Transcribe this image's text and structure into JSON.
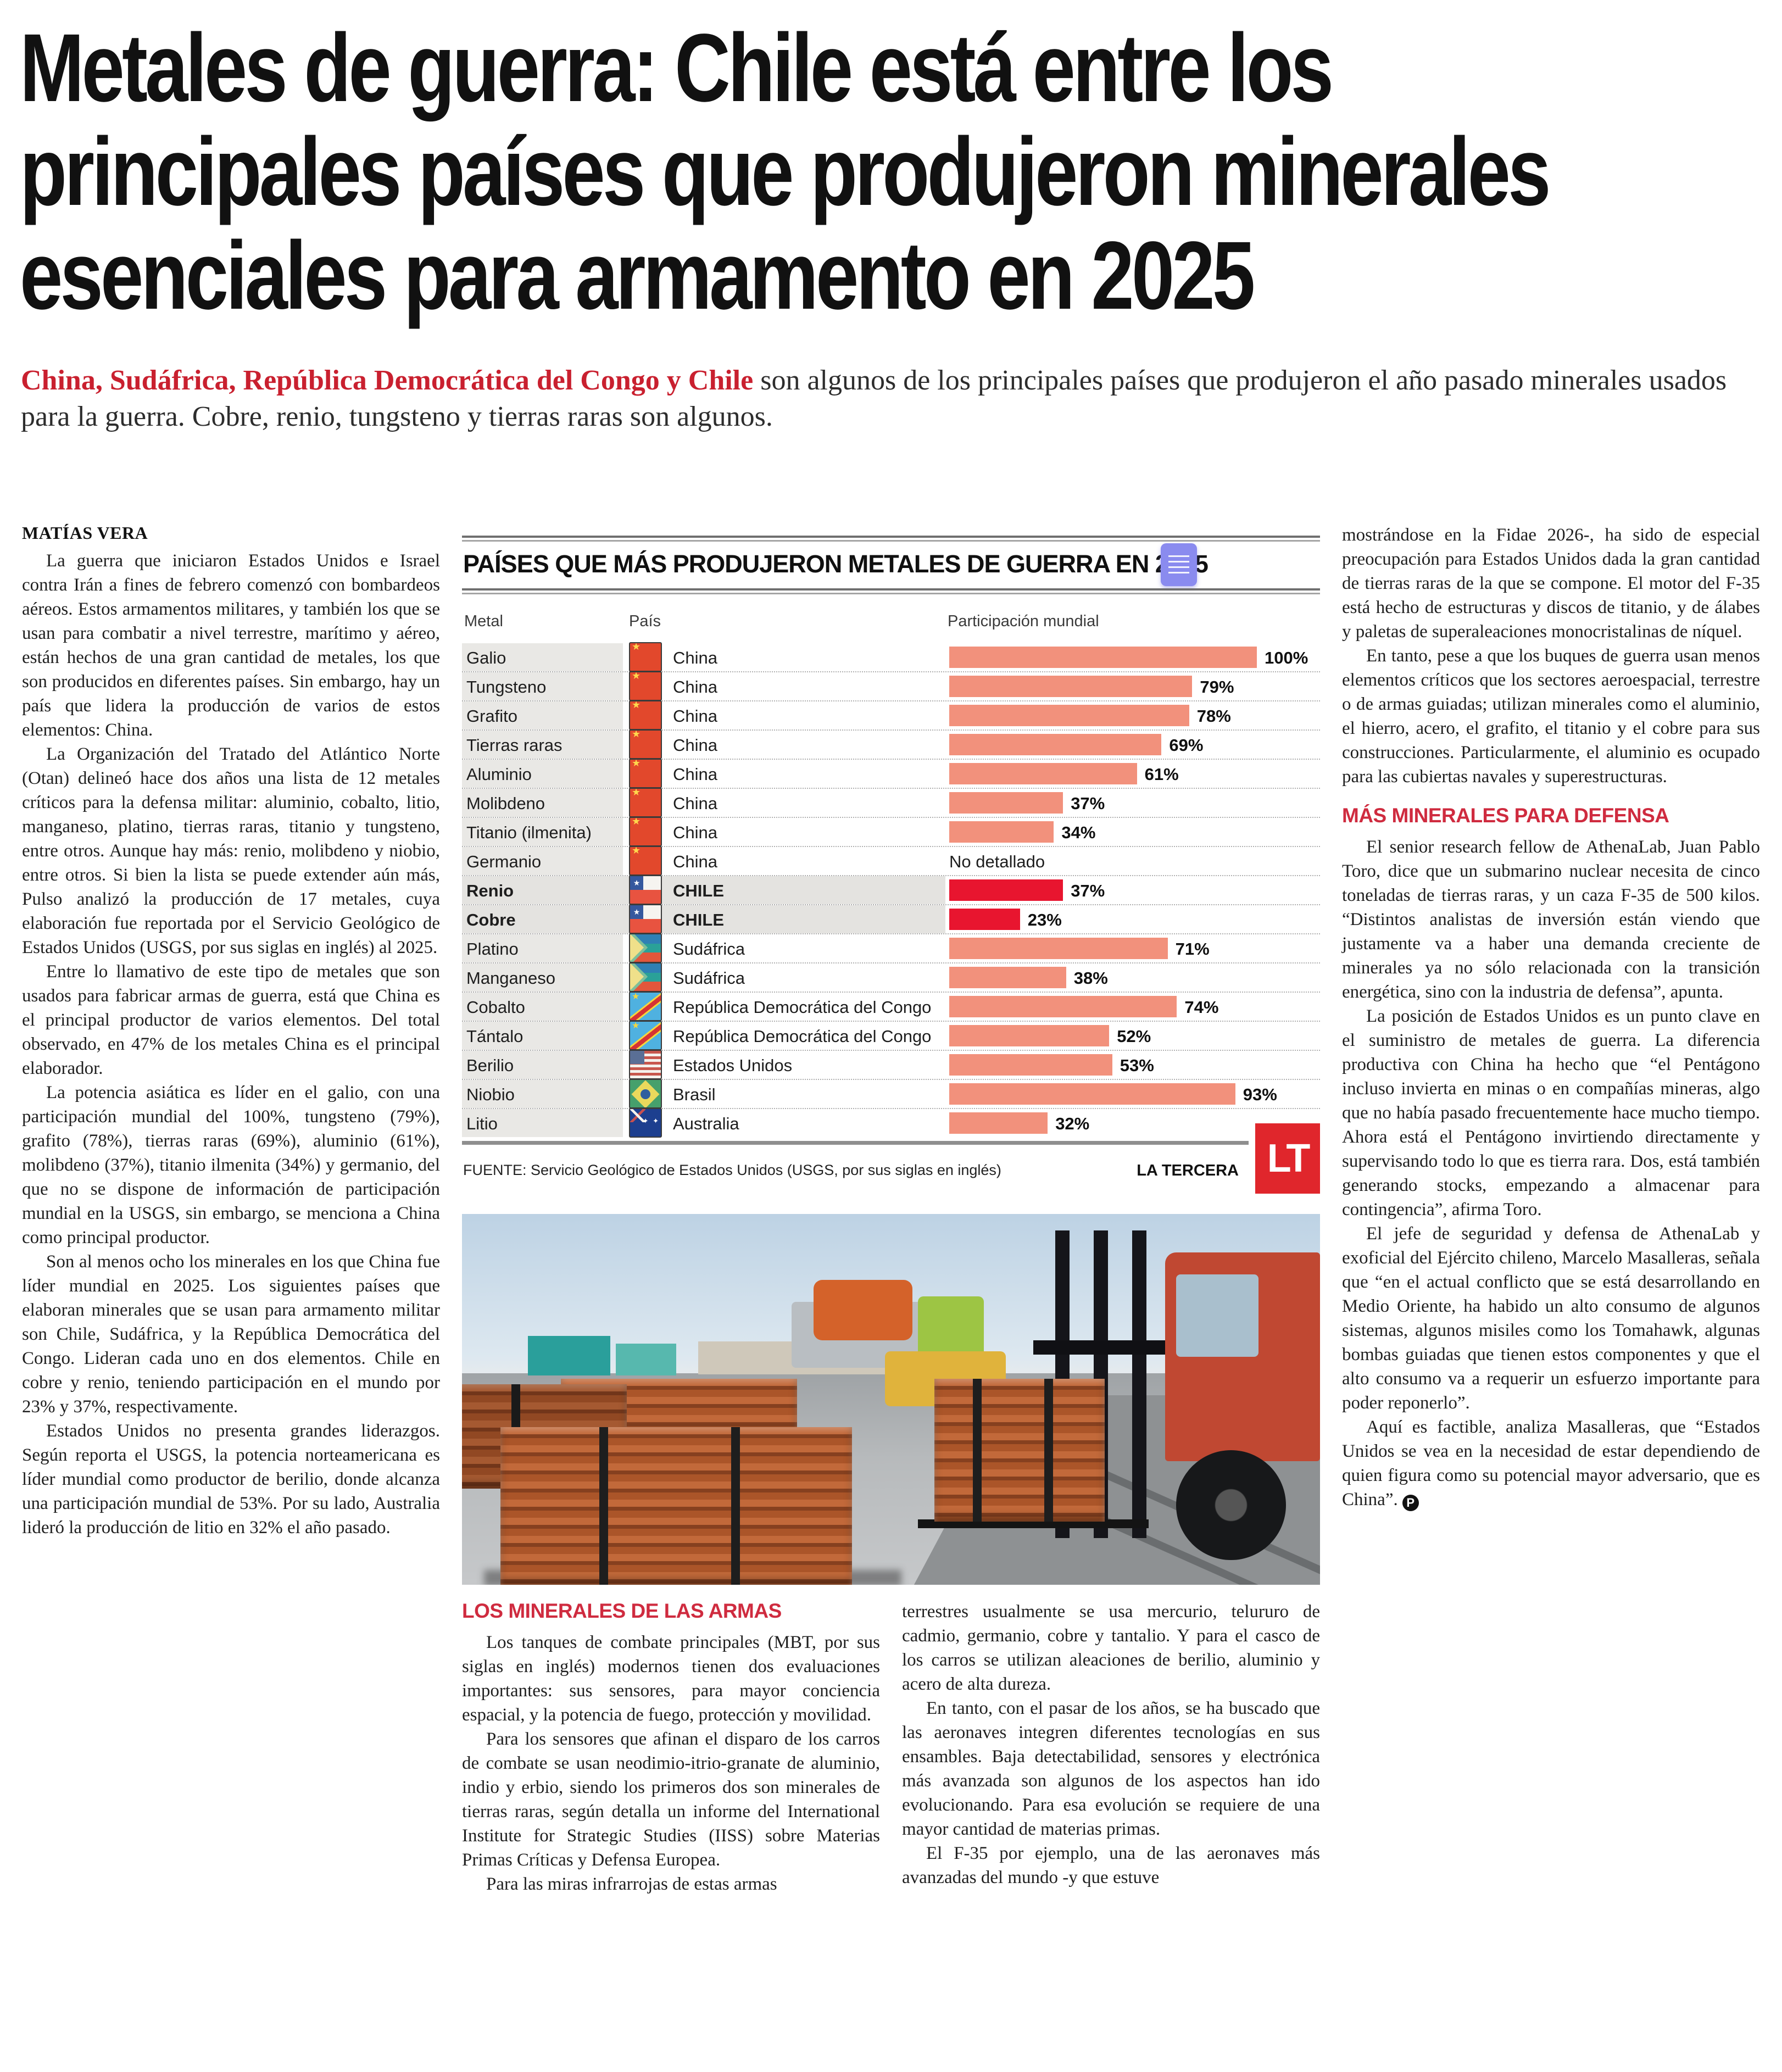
{
  "headline": {
    "lines": [
      "Metales de guerra: Chile está entre los",
      "principales países que produjeron minerales",
      "esenciales para armamento en 2025"
    ]
  },
  "lede": {
    "highlight": "China, Sudáfrica, República Democrática del Congo y Chile",
    "rest": " son algunos de los principales países que produjeron el año pasado minerales usados para la guerra. Cobre, renio, tungsteno y tierras raras son algunos."
  },
  "byline": "MATÍAS VERA",
  "columns": {
    "col1": [
      "La guerra que iniciaron Estados Unidos e Israel contra Irán a fines de febrero comenzó con bombardeos aéreos. Estos armamentos militares, y también los que se usan para combatir a nivel terrestre, marítimo y aéreo, están hechos de una gran cantidad de metales, los que son producidos en diferentes países. Sin embargo, hay un país que lidera la producción de varios de estos elementos: China.",
      "La Organización del Tratado del Atlántico Norte (Otan) delineó hace dos años una lista de 12 metales críticos para la defensa militar: aluminio, cobalto, litio, manganeso, platino, tierras raras, titanio y tungsteno, entre otros. Aunque hay más: renio, molibdeno y niobio, entre otros. Si bien la lista se puede extender aún más, Pulso analizó la producción de 17 metales, cuya elaboración fue reportada por el Servicio Geológico de Estados Unidos (USGS, por sus siglas en inglés) al 2025.",
      "Entre lo llamativo de este tipo de metales que son usados para fabricar armas de guerra, está que China es el principal productor de varios elementos. Del total observado, en 47% de los metales China es el principal elaborador.",
      "La potencia asiática es líder en el galio, con una participación mundial del 100%, tungsteno (79%), grafito (78%), tierras raras (69%), aluminio (61%), molibdeno (37%), titanio ilmenita (34%) y germanio, del que no se dispone de información de participación mundial en la USGS, sin embargo, se menciona a China como principal productor.",
      "Son al menos ocho los minerales en los que China fue líder mundial en 2025. Los siguientes países que elaboran minerales que se usan para armamento militar son Chile, Sudáfrica, y la República Democrática del Congo. Lideran cada uno en dos elementos. Chile en cobre y renio, teniendo participación en el mundo por 23% y 37%, respectivamente.",
      "Estados Unidos no presenta grandes liderazgos. Según reporta el USGS, la potencia norteamericana es líder mundial como productor de berilio, donde alcanza una participación mundial de 53%. Por su lado, Australia lideró la producción de litio en 32% el año pasado."
    ],
    "col2": {
      "header": "LOS MINERALES DE LAS ARMAS",
      "paragraphs": [
        "Los tanques de combate principales (MBT, por sus siglas en inglés) modernos tienen dos evaluaciones importantes: sus sensores, para mayor conciencia espacial, y la potencia de fuego, protección y movilidad.",
        "Para los sensores que afinan el disparo de los carros de combate se usan neodimio-itrio-granate de aluminio, indio y erbio, siendo los primeros dos son minerales de tierras raras, según detalla un informe del International Institute for Strategic Studies (IISS) sobre Materias Primas Críticas y Defensa Europea.",
        "Para las miras infrarrojas de estas armas"
      ]
    },
    "col3": [
      "terrestres usualmente se usa mercurio, telururo de cadmio, germanio, cobre y tantalio. Y para el casco de los carros se utilizan aleaciones de berilio, aluminio y acero de alta dureza.",
      "En tanto, con el pasar de los años, se ha buscado que las aeronaves integren diferentes tecnologías en sus ensambles. Baja detectabilidad, sensores y electrónica más avanzada son algunos de los aspectos han ido evolucionando. Para esa evolución se requiere de una mayor cantidad de materias primas.",
      "El F-35 por ejemplo, una de las aeronaves más avanzadas del mundo -y que estuve"
    ],
    "col4": {
      "before": [
        "mostrándose en la Fidae 2026-, ha sido de especial preocupación para Estados Unidos dada la gran cantidad de tierras raras de la que se compone. El motor del F-35 está hecho de estructuras y discos de titanio, y de álabes y paletas de superaleaciones monocristalinas de níquel.",
        "En tanto, pese a que los buques de guerra usan menos elementos críticos que los sectores aeroespacial, terrestre o de armas guiadas; utilizan minerales como el aluminio, el hierro, acero, el grafito, el titanio y el cobre para sus construcciones. Particularmente, el aluminio es ocupado para las cubiertas navales y superestructuras."
      ],
      "header": "MÁS MINERALES PARA DEFENSA",
      "after": [
        "El senior research fellow de AthenaLab, Juan Pablo Toro, dice que un submarino nuclear necesita de cinco toneladas de tierras raras, y un caza F-35 de 500 kilos. “Distintos analistas de inversión están viendo que justamente va a haber una demanda creciente de minerales ya no sólo relacionada con la transición energética, sino con la industria de defensa”, apunta.",
        "La posición de Estados Unidos es un punto clave en el suministro de metales de guerra. La diferencia productiva con China ha hecho que “el Pentágono incluso invierta en minas o en compañías mineras, algo que no había pasado frecuentemente hace mucho tiempo. Ahora está el Pentágono invirtiendo directamente y supervisando todo lo que es tierra rara. Dos, está también generando stocks, empezando a almacenar para contingencia”, afirma Toro.",
        "El jefe de seguridad y defensa de AthenaLab y exoficial del Ejército chileno, Marcelo Masalleras, señala que “en el actual conflicto que se está desarrollando en Medio Oriente, ha habido un alto consumo de algunos sistemas, algunos misiles como los Tomahawk, algunas bombas guiadas que tienen estos componentes y que el alto consumo va a requerir un esfuerzo importante para poder reponerlo”.",
        "Aquí es factible, analiza Masalleras, que “Estados Unidos se vea en la necesidad de estar dependiendo de quien figura como su potencial mayor adversario, que es China”."
      ],
      "endmark": "P"
    }
  },
  "chart_data": {
    "type": "bar",
    "title": "PAÍSES QUE MÁS PRODUJERON METALES DE GUERRA EN 2025",
    "columns": [
      "Metal",
      "País",
      "Participación mundial"
    ],
    "xlim": [
      0,
      100
    ],
    "bar_color": "#f2917c",
    "highlight_bar_color": "#e8152f",
    "rows": [
      {
        "metal": "Galio",
        "pais": "China",
        "flag": "china",
        "value": 100,
        "label": "100%",
        "highlight": false
      },
      {
        "metal": "Tungsteno",
        "pais": "China",
        "flag": "china",
        "value": 79,
        "label": "79%",
        "highlight": false
      },
      {
        "metal": "Grafito",
        "pais": "China",
        "flag": "china",
        "value": 78,
        "label": "78%",
        "highlight": false
      },
      {
        "metal": "Tierras raras",
        "pais": "China",
        "flag": "china",
        "value": 69,
        "label": "69%",
        "highlight": false
      },
      {
        "metal": "Aluminio",
        "pais": "China",
        "flag": "china",
        "value": 61,
        "label": "61%",
        "highlight": false
      },
      {
        "metal": "Molibdeno",
        "pais": "China",
        "flag": "china",
        "value": 37,
        "label": "37%",
        "highlight": false
      },
      {
        "metal": "Titanio (ilmenita)",
        "pais": "China",
        "flag": "china",
        "value": 34,
        "label": "34%",
        "highlight": false
      },
      {
        "metal": "Germanio",
        "pais": "China",
        "flag": "china",
        "value": null,
        "label": "No detallado",
        "highlight": false
      },
      {
        "metal": "Renio",
        "pais": "CHILE",
        "flag": "chile",
        "value": 37,
        "label": "37%",
        "highlight": true
      },
      {
        "metal": "Cobre",
        "pais": "CHILE",
        "flag": "chile",
        "value": 23,
        "label": "23%",
        "highlight": true
      },
      {
        "metal": "Platino",
        "pais": "Sudáfrica",
        "flag": "sudafrica",
        "value": 71,
        "label": "71%",
        "highlight": false
      },
      {
        "metal": "Manganeso",
        "pais": "Sudáfrica",
        "flag": "sudafrica",
        "value": 38,
        "label": "38%",
        "highlight": false
      },
      {
        "metal": "Cobalto",
        "pais": "República Democrática del Congo",
        "flag": "rdc",
        "value": 74,
        "label": "74%",
        "highlight": false
      },
      {
        "metal": "Tántalo",
        "pais": "República Democrática del Congo",
        "flag": "rdc",
        "value": 52,
        "label": "52%",
        "highlight": false
      },
      {
        "metal": "Berilio",
        "pais": "Estados Unidos",
        "flag": "eeuu",
        "value": 53,
        "label": "53%",
        "highlight": false
      },
      {
        "metal": "Niobio",
        "pais": "Brasil",
        "flag": "brasil",
        "value": 93,
        "label": "93%",
        "highlight": false
      },
      {
        "metal": "Litio",
        "pais": "Australia",
        "flag": "australia",
        "value": 32,
        "label": "32%",
        "highlight": false
      }
    ],
    "source": "FUENTE: Servicio Geológico de Estados Unidos (USGS, por sus siglas en inglés)",
    "credit": "LA TERCERA",
    "logo": "LT"
  },
  "colors": {
    "lede_red": "#c9202f",
    "section_red": "#cf2b3f",
    "metal_col_bg": "#e9e8e5",
    "highlight_bg": "#e4e3e0",
    "logo_bg": "#e0262c",
    "badge_bg": "#8a8bef"
  }
}
